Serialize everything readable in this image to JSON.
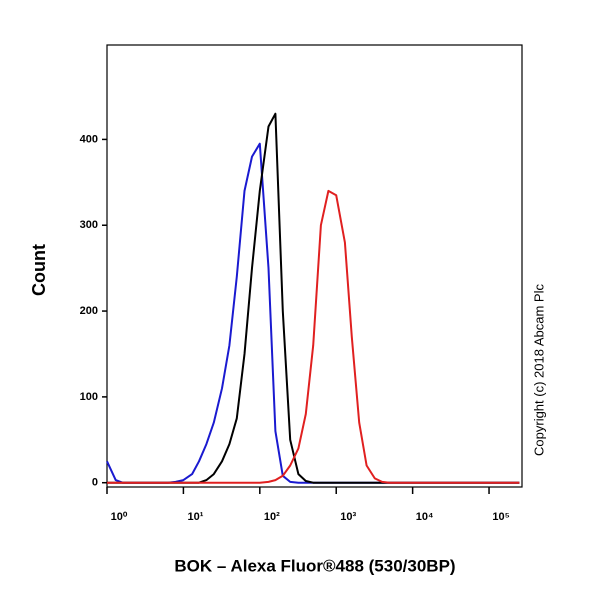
{
  "chart_data": {
    "type": "line",
    "xlabel": "BOK – Alexa Fluor®488 (530/30BP)",
    "ylabel": "Count",
    "annotation": "Copyright (c) 2018 Abcam Plc",
    "log_x": true,
    "x": [
      1,
      1.3,
      1.6,
      2,
      2.5,
      3.2,
      4,
      5,
      6.3,
      7.9,
      10,
      13,
      16,
      20,
      25,
      32,
      40,
      50,
      63,
      79,
      100,
      130,
      160,
      200,
      250,
      320,
      400,
      500,
      630,
      790,
      1000,
      1300,
      1600,
      2000,
      2500,
      3200,
      4000,
      5000,
      6300,
      7900,
      10000,
      13000,
      16000,
      20000,
      25000,
      32000,
      40000,
      50000,
      63000,
      79000,
      100000,
      130000,
      160000,
      200000,
      250000
    ],
    "series": [
      {
        "color": "#1a1ad0",
        "values": [
          25,
          3,
          0,
          0,
          0,
          0,
          0,
          0,
          0,
          1,
          3,
          10,
          25,
          45,
          70,
          110,
          160,
          240,
          340,
          380,
          395,
          250,
          60,
          8,
          1,
          0,
          0,
          0,
          0,
          0,
          0,
          0,
          0,
          0,
          0,
          0,
          0,
          0,
          0,
          0,
          0,
          0,
          0,
          0,
          0,
          0,
          0,
          0,
          0,
          0,
          0,
          0,
          0,
          0,
          0
        ]
      },
      {
        "color": "#000000",
        "values": [
          0,
          0,
          0,
          0,
          0,
          0,
          0,
          0,
          0,
          0,
          0,
          0,
          0,
          3,
          10,
          25,
          45,
          75,
          150,
          250,
          340,
          415,
          430,
          200,
          50,
          10,
          2,
          0,
          0,
          0,
          0,
          0,
          0,
          0,
          0,
          0,
          0,
          0,
          0,
          0,
          0,
          0,
          0,
          0,
          0,
          0,
          0,
          0,
          0,
          0,
          0,
          0,
          0,
          0,
          0
        ]
      },
      {
        "color": "#e02020",
        "values": [
          0,
          0,
          0,
          0,
          0,
          0,
          0,
          0,
          0,
          0,
          0,
          0,
          0,
          0,
          0,
          0,
          0,
          0,
          0,
          0,
          0,
          1,
          3,
          8,
          20,
          40,
          80,
          160,
          300,
          340,
          335,
          280,
          170,
          70,
          20,
          5,
          1,
          0,
          0,
          0,
          0,
          0,
          0,
          0,
          0,
          0,
          0,
          0,
          0,
          0,
          0,
          0,
          0,
          0,
          0
        ]
      }
    ],
    "xlim": [
      1,
      270000
    ],
    "xticks": [
      {
        "value": 1,
        "label": "10⁰"
      },
      {
        "value": 10,
        "label": "10¹"
      },
      {
        "value": 100,
        "label": "10²"
      },
      {
        "value": 1000,
        "label": "10³"
      },
      {
        "value": 10000,
        "label": "10⁴"
      },
      {
        "value": 100000,
        "label": "10⁵"
      }
    ],
    "ylim": [
      -5,
      510
    ],
    "yticks": [
      0,
      100,
      200,
      300,
      400
    ]
  }
}
